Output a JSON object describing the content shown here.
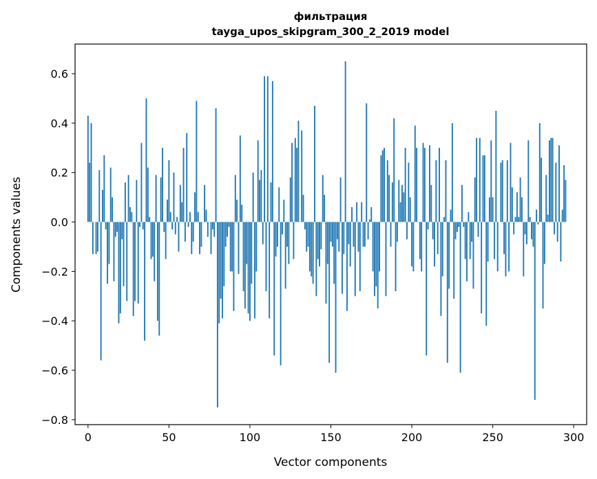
{
  "chart_data": {
    "type": "bar",
    "title": "фильтрация",
    "subtitle": "tayga_upos_skipgram_300_2_2019 model",
    "xlabel": "Vector components",
    "ylabel": "Components values",
    "xlim": [
      -8,
      308
    ],
    "ylim": [
      -0.82,
      0.72
    ],
    "xticks": [
      0,
      50,
      100,
      150,
      200,
      250,
      300
    ],
    "yticks": [
      -0.8,
      -0.6,
      -0.4,
      -0.2,
      0.0,
      0.2,
      0.4,
      0.6
    ],
    "ytick_labels": [
      "−0.8",
      "−0.6",
      "−0.4",
      "−0.2",
      "0.0",
      "0.2",
      "0.4",
      "0.6"
    ],
    "grid": false,
    "bar_color": "#1f77b4",
    "values": [
      0.43,
      0.24,
      0.4,
      -0.13,
      0.0,
      -0.13,
      -0.12,
      0.21,
      -0.56,
      0.13,
      0.27,
      -0.03,
      -0.25,
      -0.17,
      0.22,
      0.1,
      -0.24,
      -0.06,
      -0.04,
      -0.41,
      -0.37,
      -0.07,
      -0.26,
      0.16,
      -0.32,
      0.19,
      0.06,
      0.04,
      -0.38,
      -0.32,
      0.17,
      -0.33,
      -0.02,
      0.32,
      -0.03,
      -0.48,
      0.5,
      0.22,
      0.02,
      -0.15,
      -0.14,
      -0.24,
      0.19,
      -0.4,
      -0.46,
      0.18,
      0.3,
      -0.04,
      -0.15,
      0.09,
      0.25,
      0.04,
      -0.03,
      0.2,
      -0.05,
      0.02,
      -0.12,
      0.15,
      0.08,
      0.3,
      -0.08,
      0.36,
      -0.02,
      0.04,
      -0.13,
      -0.08,
      0.12,
      0.49,
      0.04,
      -0.13,
      -0.1,
      0.0,
      0.15,
      0.05,
      -0.06,
      0.0,
      -0.13,
      -0.03,
      -0.06,
      0.46,
      -0.75,
      -0.41,
      -0.31,
      -0.39,
      -0.26,
      -0.1,
      -0.06,
      -0.02,
      -0.2,
      -0.2,
      -0.36,
      0.19,
      0.09,
      -0.21,
      0.35,
      0.07,
      -0.28,
      -0.35,
      -0.17,
      -0.37,
      -0.4,
      -0.25,
      0.2,
      -0.39,
      -0.2,
      0.33,
      0.17,
      0.21,
      -0.09,
      0.59,
      -0.28,
      0.59,
      -0.39,
      0.16,
      0.57,
      -0.54,
      -0.14,
      -0.1,
      0.14,
      -0.58,
      -0.05,
      0.09,
      -0.27,
      -0.1,
      -0.17,
      0.18,
      0.32,
      -0.15,
      0.34,
      0.3,
      0.41,
      0.0,
      0.37,
      0.11,
      -0.03,
      -0.12,
      -0.1,
      -0.2,
      -0.22,
      -0.25,
      0.47,
      -0.3,
      -0.15,
      -0.18,
      -0.11,
      0.19,
      0.11,
      -0.33,
      -0.17,
      -0.57,
      -0.08,
      -0.1,
      -0.25,
      -0.61,
      -0.07,
      -0.12,
      0.18,
      -0.29,
      -0.13,
      0.65,
      -0.36,
      -0.09,
      -0.18,
      0.06,
      -0.1,
      -0.3,
      0.08,
      -0.12,
      -0.28,
      0.08,
      -0.1,
      -0.1,
      0.48,
      -0.07,
      0.01,
      0.06,
      -0.2,
      -0.3,
      -0.26,
      -0.35,
      -0.2,
      0.27,
      0.29,
      0.3,
      -0.3,
      0.25,
      0.19,
      -0.1,
      0.16,
      0.42,
      -0.28,
      -0.08,
      0.17,
      0.08,
      0.15,
      0.12,
      0.3,
      -0.07,
      0.24,
      0.1,
      -0.18,
      -0.2,
      0.39,
      0.3,
      0.0,
      -0.15,
      -0.2,
      0.32,
      0.3,
      -0.54,
      -0.03,
      0.31,
      0.15,
      -0.07,
      -0.18,
      0.25,
      -0.13,
      0.3,
      -0.38,
      -0.22,
      0.02,
      0.25,
      -0.57,
      -0.27,
      0.05,
      0.4,
      -0.31,
      -0.07,
      -0.04,
      -0.02,
      -0.61,
      0.15,
      -0.02,
      -0.15,
      -0.24,
      0.04,
      -0.15,
      -0.08,
      -0.27,
      0.18,
      0.34,
      -0.06,
      0.34,
      -0.37,
      0.27,
      0.27,
      -0.42,
      -0.16,
      0.1,
      0.33,
      0.1,
      -0.15,
      0.45,
      -0.2,
      0.0,
      0.24,
      0.25,
      -0.13,
      -0.22,
      0.25,
      -0.2,
      0.32,
      0.14,
      -0.05,
      0.02,
      0.12,
      0.02,
      0.18,
      0.1,
      -0.22,
      -0.05,
      -0.09,
      0.33,
      0.02,
      -0.07,
      -0.1,
      -0.72,
      0.05,
      -0.01,
      0.4,
      0.26,
      -0.35,
      -0.17,
      0.19,
      0.03,
      0.33,
      0.34,
      0.34,
      -0.05,
      0.24,
      -0.08,
      0.31,
      -0.16,
      0.05,
      0.23,
      0.17
    ]
  }
}
